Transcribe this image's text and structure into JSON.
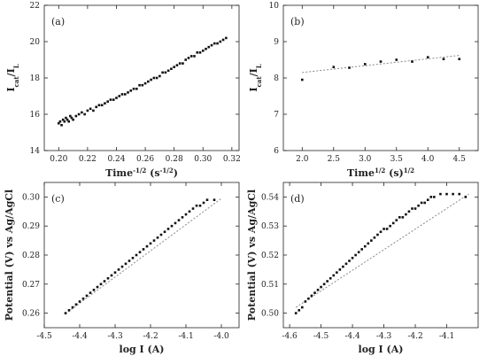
{
  "chart_data": [
    {
      "type": "scatter",
      "panel_label": "(a)",
      "xlabel": {
        "base": "Time",
        "sup1": "-1/2",
        "mid": " (s",
        "sup2": "-1/2",
        "end": ")"
      },
      "ylabel": {
        "base": "I",
        "sub1": "cat",
        "mid": "/I",
        "sub2": "L"
      },
      "xlim": [
        0.19,
        0.325
      ],
      "ylim": [
        14,
        22
      ],
      "xticks": [
        0.2,
        0.22,
        0.24,
        0.26,
        0.28,
        0.3,
        0.32
      ],
      "xtick_labels": [
        "0.20",
        "0.22",
        "0.24",
        "0.26",
        "0.28",
        "0.30",
        "0.32"
      ],
      "yticks": [
        14,
        16,
        18,
        20,
        22
      ],
      "ytick_labels": [
        "14",
        "16",
        "18",
        "20",
        "22"
      ],
      "points": [
        [
          0.2,
          15.5
        ],
        [
          0.201,
          15.6
        ],
        [
          0.202,
          15.4
        ],
        [
          0.203,
          15.7
        ],
        [
          0.204,
          15.6
        ],
        [
          0.205,
          15.8
        ],
        [
          0.206,
          15.7
        ],
        [
          0.207,
          15.6
        ],
        [
          0.208,
          15.9
        ],
        [
          0.209,
          15.8
        ],
        [
          0.21,
          15.7
        ],
        [
          0.212,
          15.9
        ],
        [
          0.214,
          16.0
        ],
        [
          0.216,
          16.1
        ],
        [
          0.218,
          16.0
        ],
        [
          0.22,
          16.2
        ],
        [
          0.222,
          16.3
        ],
        [
          0.224,
          16.2
        ],
        [
          0.226,
          16.4
        ],
        [
          0.228,
          16.5
        ],
        [
          0.23,
          16.5
        ],
        [
          0.232,
          16.6
        ],
        [
          0.234,
          16.7
        ],
        [
          0.236,
          16.8
        ],
        [
          0.238,
          16.8
        ],
        [
          0.24,
          16.9
        ],
        [
          0.242,
          17.0
        ],
        [
          0.244,
          17.1
        ],
        [
          0.246,
          17.1
        ],
        [
          0.248,
          17.2
        ],
        [
          0.25,
          17.3
        ],
        [
          0.252,
          17.4
        ],
        [
          0.254,
          17.4
        ],
        [
          0.256,
          17.6
        ],
        [
          0.258,
          17.6
        ],
        [
          0.26,
          17.7
        ],
        [
          0.262,
          17.8
        ],
        [
          0.264,
          17.9
        ],
        [
          0.266,
          18.0
        ],
        [
          0.268,
          18.0
        ],
        [
          0.27,
          18.1
        ],
        [
          0.272,
          18.3
        ],
        [
          0.274,
          18.3
        ],
        [
          0.276,
          18.4
        ],
        [
          0.278,
          18.5
        ],
        [
          0.28,
          18.6
        ],
        [
          0.282,
          18.7
        ],
        [
          0.284,
          18.8
        ],
        [
          0.286,
          18.8
        ],
        [
          0.288,
          19.0
        ],
        [
          0.29,
          19.1
        ],
        [
          0.292,
          19.2
        ],
        [
          0.294,
          19.2
        ],
        [
          0.296,
          19.4
        ],
        [
          0.298,
          19.4
        ],
        [
          0.3,
          19.5
        ],
        [
          0.302,
          19.6
        ],
        [
          0.304,
          19.7
        ],
        [
          0.306,
          19.8
        ],
        [
          0.308,
          19.9
        ],
        [
          0.31,
          19.9
        ],
        [
          0.312,
          20.0
        ],
        [
          0.314,
          20.1
        ],
        [
          0.316,
          20.2
        ]
      ]
    },
    {
      "type": "scatter",
      "panel_label": "(b)",
      "xlabel": {
        "base": "Time",
        "sup1": "1/2",
        "mid": " (s)",
        "sup2": "1/2",
        "end": ""
      },
      "ylabel": {
        "base": "I",
        "sub1": "cat",
        "mid": "/I",
        "sub2": "L"
      },
      "xlim": [
        1.7,
        4.8
      ],
      "ylim": [
        6,
        10
      ],
      "xticks": [
        2.0,
        2.5,
        3.0,
        3.5,
        4.0,
        4.5
      ],
      "xtick_labels": [
        "2.0",
        "2.5",
        "3.0",
        "3.5",
        "4.0",
        "4.5"
      ],
      "yticks": [
        6,
        7,
        8,
        9,
        10
      ],
      "ytick_labels": [
        "6",
        "7",
        "8",
        "9",
        "10"
      ],
      "points": [
        [
          2.0,
          7.95
        ],
        [
          2.5,
          8.3
        ],
        [
          2.75,
          8.28
        ],
        [
          3.0,
          8.38
        ],
        [
          3.25,
          8.45
        ],
        [
          3.5,
          8.5
        ],
        [
          3.75,
          8.45
        ],
        [
          4.0,
          8.57
        ],
        [
          4.25,
          8.52
        ],
        [
          4.5,
          8.52
        ]
      ],
      "fit": [
        [
          2.0,
          8.15
        ],
        [
          4.5,
          8.62
        ]
      ]
    },
    {
      "type": "scatter",
      "panel_label": "(c)",
      "xlabel": {
        "base": "log I (A)",
        "sup1": "",
        "mid": "",
        "sup2": "",
        "end": ""
      },
      "ylabel": {
        "base": "Potential (V) vs Ag/AgCl",
        "sub1": "",
        "mid": "",
        "sub2": ""
      },
      "xlim": [
        -4.5,
        -3.95
      ],
      "ylim": [
        0.255,
        0.305
      ],
      "xticks": [
        -4.5,
        -4.4,
        -4.3,
        -4.2,
        -4.1,
        -4.0
      ],
      "xtick_labels": [
        "-4.5",
        "-4.4",
        "-4.3",
        "-4.2",
        "-4.1",
        "-4.0"
      ],
      "yticks": [
        0.26,
        0.27,
        0.28,
        0.29,
        0.3
      ],
      "ytick_labels": [
        "0.26",
        "0.27",
        "0.28",
        "0.29",
        "0.30"
      ],
      "points": [
        [
          -4.44,
          0.26
        ],
        [
          -4.43,
          0.261
        ],
        [
          -4.42,
          0.262
        ],
        [
          -4.41,
          0.263
        ],
        [
          -4.4,
          0.264
        ],
        [
          -4.39,
          0.265
        ],
        [
          -4.38,
          0.266
        ],
        [
          -4.37,
          0.267
        ],
        [
          -4.36,
          0.268
        ],
        [
          -4.35,
          0.269
        ],
        [
          -4.34,
          0.27
        ],
        [
          -4.33,
          0.271
        ],
        [
          -4.32,
          0.272
        ],
        [
          -4.31,
          0.273
        ],
        [
          -4.3,
          0.274
        ],
        [
          -4.29,
          0.275
        ],
        [
          -4.28,
          0.276
        ],
        [
          -4.27,
          0.277
        ],
        [
          -4.26,
          0.278
        ],
        [
          -4.25,
          0.279
        ],
        [
          -4.24,
          0.28
        ],
        [
          -4.23,
          0.281
        ],
        [
          -4.22,
          0.282
        ],
        [
          -4.21,
          0.283
        ],
        [
          -4.2,
          0.284
        ],
        [
          -4.19,
          0.285
        ],
        [
          -4.18,
          0.286
        ],
        [
          -4.17,
          0.287
        ],
        [
          -4.16,
          0.288
        ],
        [
          -4.15,
          0.289
        ],
        [
          -4.14,
          0.29
        ],
        [
          -4.13,
          0.291
        ],
        [
          -4.12,
          0.292
        ],
        [
          -4.11,
          0.293
        ],
        [
          -4.1,
          0.294
        ],
        [
          -4.09,
          0.295
        ],
        [
          -4.08,
          0.296
        ],
        [
          -4.07,
          0.297
        ],
        [
          -4.06,
          0.297
        ],
        [
          -4.05,
          0.298
        ],
        [
          -4.04,
          0.299
        ],
        [
          -4.02,
          0.299
        ]
      ],
      "fit": [
        [
          -4.44,
          0.2598
        ],
        [
          -4.0,
          0.2995
        ]
      ]
    },
    {
      "type": "scatter",
      "panel_label": "(d)",
      "xlabel": {
        "base": "log I (A)",
        "sup1": "",
        "mid": "",
        "sup2": "",
        "end": ""
      },
      "ylabel": {
        "base": "Potential (V) vs Ag/AgCl",
        "sub1": "",
        "mid": "",
        "sub2": ""
      },
      "xlim": [
        -4.62,
        -4.0
      ],
      "ylim": [
        0.495,
        0.545
      ],
      "xticks": [
        -4.6,
        -4.5,
        -4.4,
        -4.3,
        -4.2,
        -4.1
      ],
      "xtick_labels": [
        "-4.6",
        "-4.5",
        "-4.4",
        "-4.3",
        "-4.2",
        "-4.1"
      ],
      "yticks": [
        0.5,
        0.51,
        0.52,
        0.53,
        0.54
      ],
      "ytick_labels": [
        "0.50",
        "0.51",
        "0.52",
        "0.53",
        "0.54"
      ],
      "points": [
        [
          -4.58,
          0.5
        ],
        [
          -4.57,
          0.501
        ],
        [
          -4.56,
          0.502
        ],
        [
          -4.55,
          0.504
        ],
        [
          -4.54,
          0.505
        ],
        [
          -4.53,
          0.506
        ],
        [
          -4.52,
          0.507
        ],
        [
          -4.51,
          0.508
        ],
        [
          -4.5,
          0.509
        ],
        [
          -4.49,
          0.51
        ],
        [
          -4.48,
          0.511
        ],
        [
          -4.47,
          0.512
        ],
        [
          -4.46,
          0.513
        ],
        [
          -4.45,
          0.514
        ],
        [
          -4.44,
          0.515
        ],
        [
          -4.43,
          0.516
        ],
        [
          -4.42,
          0.517
        ],
        [
          -4.41,
          0.518
        ],
        [
          -4.4,
          0.519
        ],
        [
          -4.39,
          0.52
        ],
        [
          -4.38,
          0.521
        ],
        [
          -4.37,
          0.522
        ],
        [
          -4.36,
          0.523
        ],
        [
          -4.35,
          0.524
        ],
        [
          -4.34,
          0.525
        ],
        [
          -4.33,
          0.526
        ],
        [
          -4.32,
          0.527
        ],
        [
          -4.31,
          0.528
        ],
        [
          -4.3,
          0.529
        ],
        [
          -4.29,
          0.529
        ],
        [
          -4.28,
          0.53
        ],
        [
          -4.27,
          0.531
        ],
        [
          -4.26,
          0.532
        ],
        [
          -4.25,
          0.533
        ],
        [
          -4.24,
          0.533
        ],
        [
          -4.23,
          0.534
        ],
        [
          -4.22,
          0.535
        ],
        [
          -4.21,
          0.536
        ],
        [
          -4.2,
          0.536
        ],
        [
          -4.19,
          0.537
        ],
        [
          -4.18,
          0.538
        ],
        [
          -4.17,
          0.538
        ],
        [
          -4.16,
          0.539
        ],
        [
          -4.15,
          0.54
        ],
        [
          -4.14,
          0.54
        ],
        [
          -4.12,
          0.541
        ],
        [
          -4.1,
          0.541
        ],
        [
          -4.08,
          0.541
        ],
        [
          -4.06,
          0.541
        ],
        [
          -4.04,
          0.54
        ]
      ],
      "fit": [
        [
          -4.58,
          0.502
        ],
        [
          -4.03,
          0.541
        ]
      ]
    }
  ]
}
